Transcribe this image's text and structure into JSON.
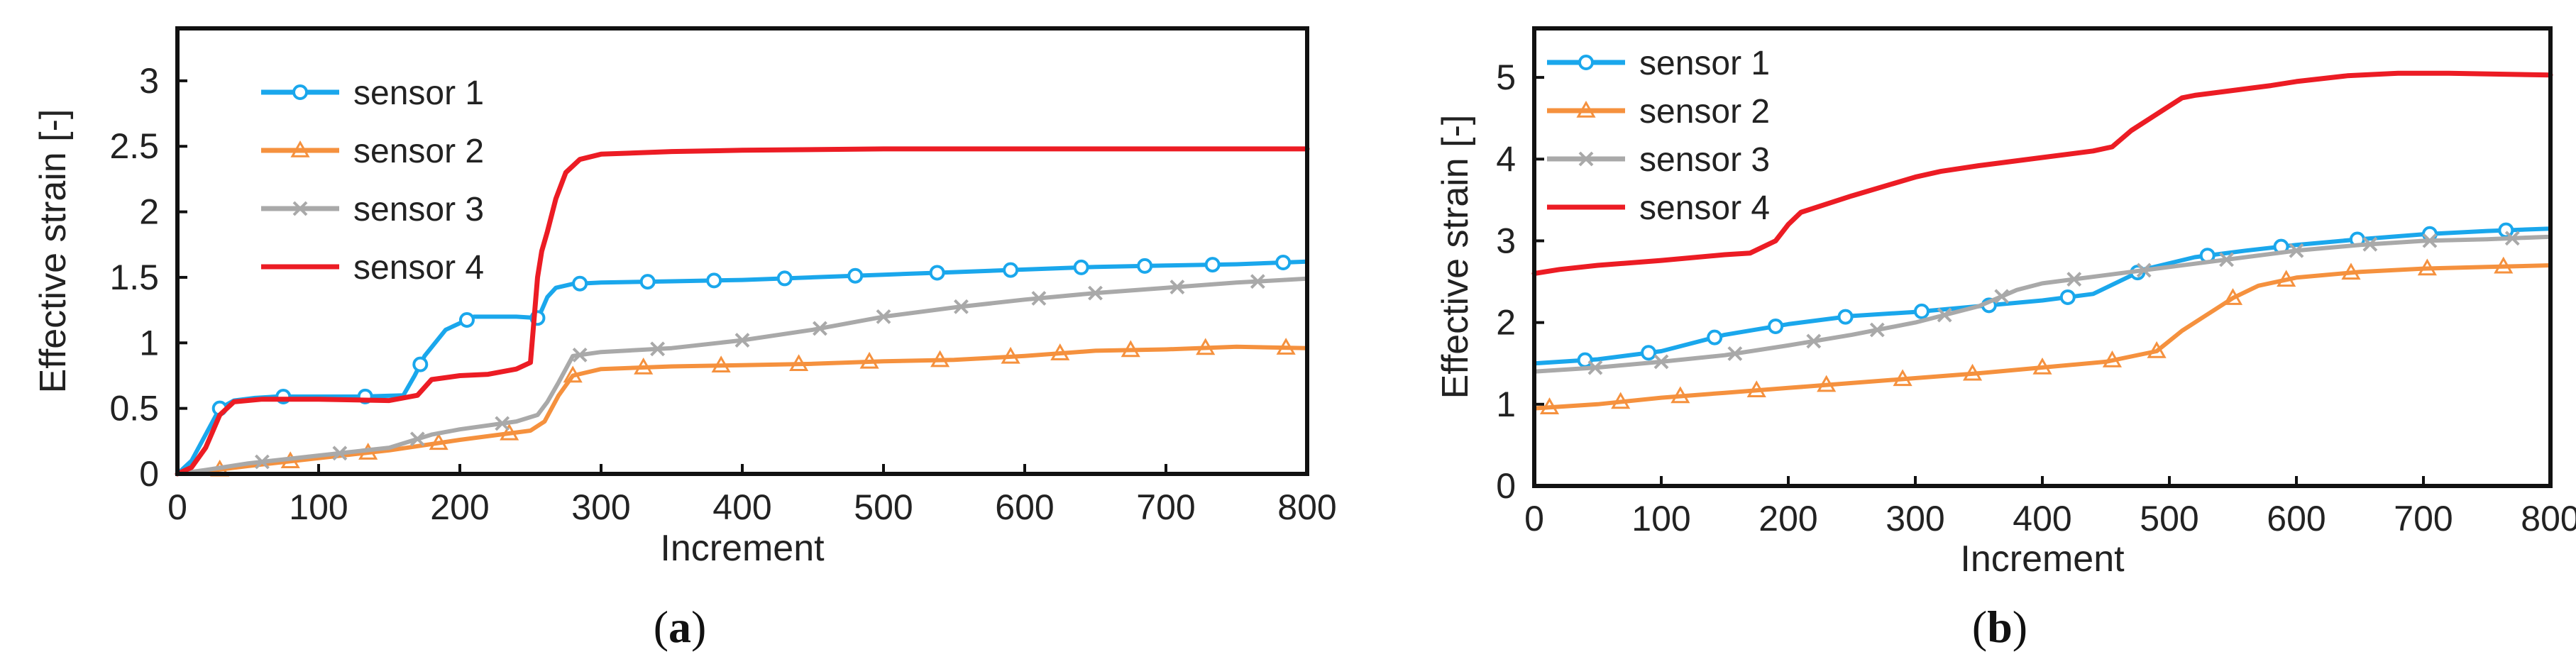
{
  "colors": {
    "sensor1": "#1aa7ec",
    "sensor2": "#f5913e",
    "sensor3": "#a9a9a9",
    "sensor4": "#ec1c24",
    "axis": "#111111"
  },
  "chart_data": [
    {
      "type": "line",
      "caption": "a",
      "xlabel": "Increment",
      "ylabel": "Effective strain [-]",
      "xlim": [
        0,
        800
      ],
      "ylim": [
        0,
        3.4
      ],
      "xticks": [
        0,
        100,
        200,
        300,
        400,
        500,
        600,
        700,
        800
      ],
      "yticks": [
        0,
        0.5,
        1,
        1.5,
        2,
        2.5,
        3
      ],
      "ytick_labels": [
        "0",
        "0.5",
        "1",
        "1.5",
        "2",
        "2.5",
        "3"
      ],
      "legend_position": "top-left",
      "series": [
        {
          "name": "sensor 1",
          "color_key": "sensor1",
          "marker": "circle",
          "x": [
            0,
            10,
            20,
            30,
            40,
            55,
            70,
            100,
            130,
            160,
            168,
            175,
            190,
            210,
            240,
            255,
            258,
            262,
            268,
            280,
            300,
            350,
            400,
            450,
            500,
            550,
            600,
            650,
            700,
            750,
            800
          ],
          "y": [
            0,
            0.1,
            0.3,
            0.5,
            0.56,
            0.58,
            0.59,
            0.59,
            0.59,
            0.6,
            0.75,
            0.9,
            1.1,
            1.2,
            1.2,
            1.19,
            1.25,
            1.35,
            1.42,
            1.45,
            1.46,
            1.47,
            1.48,
            1.5,
            1.52,
            1.54,
            1.56,
            1.58,
            1.59,
            1.6,
            1.62
          ],
          "markers_x": [
            30,
            75,
            133,
            172,
            205,
            255,
            285,
            333,
            380,
            430,
            480,
            538,
            590,
            640,
            685,
            733,
            783
          ]
        },
        {
          "name": "sensor 2",
          "color_key": "sensor2",
          "marker": "triangle",
          "x": [
            0,
            20,
            50,
            100,
            150,
            200,
            250,
            260,
            270,
            280,
            300,
            350,
            400,
            450,
            500,
            550,
            600,
            650,
            700,
            750,
            800
          ],
          "y": [
            0,
            0.02,
            0.06,
            0.12,
            0.18,
            0.26,
            0.33,
            0.4,
            0.6,
            0.75,
            0.8,
            0.82,
            0.83,
            0.84,
            0.86,
            0.87,
            0.9,
            0.94,
            0.95,
            0.97,
            0.96
          ],
          "markers_x": [
            30,
            80,
            135,
            185,
            235,
            280,
            330,
            385,
            440,
            490,
            540,
            590,
            625,
            675,
            728,
            785
          ]
        },
        {
          "name": "sensor 3",
          "color_key": "sensor3",
          "marker": "x",
          "x": [
            0,
            20,
            50,
            100,
            150,
            180,
            200,
            240,
            255,
            262,
            270,
            280,
            300,
            350,
            400,
            450,
            500,
            550,
            600,
            650,
            700,
            750,
            800
          ],
          "y": [
            0,
            0.03,
            0.08,
            0.14,
            0.2,
            0.3,
            0.34,
            0.4,
            0.45,
            0.55,
            0.7,
            0.9,
            0.93,
            0.96,
            1.02,
            1.1,
            1.2,
            1.27,
            1.33,
            1.38,
            1.42,
            1.46,
            1.49
          ],
          "markers_x": [
            60,
            115,
            170,
            230,
            285,
            340,
            400,
            455,
            500,
            555,
            610,
            650,
            708,
            765
          ]
        },
        {
          "name": "sensor 4",
          "color_key": "sensor4",
          "marker": "none",
          "x": [
            0,
            10,
            20,
            30,
            40,
            60,
            100,
            150,
            170,
            180,
            200,
            220,
            240,
            250,
            255,
            258,
            262,
            268,
            275,
            285,
            300,
            350,
            400,
            500,
            600,
            700,
            800
          ],
          "y": [
            0,
            0.05,
            0.2,
            0.45,
            0.55,
            0.57,
            0.57,
            0.56,
            0.6,
            0.72,
            0.75,
            0.76,
            0.8,
            0.85,
            1.5,
            1.7,
            1.85,
            2.1,
            2.3,
            2.4,
            2.44,
            2.46,
            2.47,
            2.48,
            2.48,
            2.48,
            2.48
          ],
          "markers_x": []
        }
      ]
    },
    {
      "type": "line",
      "caption": "b",
      "xlabel": "Increment",
      "ylabel": "Effective strain [-]",
      "xlim": [
        0,
        800
      ],
      "ylim": [
        0,
        5.6
      ],
      "xticks": [
        0,
        100,
        200,
        300,
        400,
        500,
        600,
        700,
        800
      ],
      "yticks": [
        0,
        1,
        2,
        3,
        4,
        5
      ],
      "ytick_labels": [
        "0",
        "1",
        "2",
        "3",
        "4",
        "5"
      ],
      "legend_position": "top-left",
      "series": [
        {
          "name": "sensor 1",
          "color_key": "sensor1",
          "marker": "circle",
          "x": [
            0,
            50,
            100,
            150,
            200,
            250,
            300,
            350,
            400,
            440,
            460,
            480,
            520,
            560,
            600,
            650,
            700,
            750,
            800
          ],
          "y": [
            1.5,
            1.55,
            1.65,
            1.85,
            1.98,
            2.08,
            2.13,
            2.2,
            2.27,
            2.35,
            2.5,
            2.65,
            2.8,
            2.88,
            2.95,
            3.02,
            3.08,
            3.12,
            3.15
          ],
          "markers_x": [
            40,
            90,
            142,
            190,
            245,
            305,
            358,
            420,
            475,
            530,
            588,
            648,
            705,
            765
          ]
        },
        {
          "name": "sensor 2",
          "color_key": "sensor2",
          "marker": "triangle",
          "x": [
            0,
            50,
            100,
            150,
            200,
            250,
            300,
            350,
            400,
            450,
            490,
            510,
            530,
            550,
            570,
            600,
            650,
            700,
            750,
            800
          ],
          "y": [
            0.95,
            1.0,
            1.08,
            1.14,
            1.2,
            1.26,
            1.32,
            1.38,
            1.45,
            1.52,
            1.65,
            1.9,
            2.1,
            2.3,
            2.45,
            2.55,
            2.62,
            2.66,
            2.68,
            2.7
          ],
          "markers_x": [
            12,
            68,
            115,
            175,
            230,
            290,
            345,
            400,
            455,
            490,
            550,
            592,
            643,
            703,
            763
          ]
        },
        {
          "name": "sensor 3",
          "color_key": "sensor3",
          "marker": "x",
          "x": [
            0,
            50,
            100,
            150,
            200,
            250,
            300,
            350,
            380,
            400,
            450,
            500,
            550,
            600,
            650,
            700,
            750,
            800
          ],
          "y": [
            1.4,
            1.45,
            1.52,
            1.6,
            1.72,
            1.85,
            2.0,
            2.2,
            2.4,
            2.48,
            2.58,
            2.68,
            2.78,
            2.88,
            2.95,
            3.0,
            3.02,
            3.05
          ],
          "markers_x": [
            48,
            100,
            158,
            220,
            270,
            323,
            368,
            425,
            480,
            545,
            600,
            658,
            705,
            770
          ]
        },
        {
          "name": "sensor 4",
          "color_key": "sensor4",
          "marker": "none",
          "x": [
            0,
            20,
            50,
            100,
            150,
            170,
            190,
            200,
            210,
            250,
            300,
            320,
            350,
            400,
            440,
            455,
            470,
            490,
            510,
            520,
            550,
            580,
            600,
            640,
            680,
            720,
            800
          ],
          "y": [
            2.6,
            2.65,
            2.7,
            2.76,
            2.83,
            2.85,
            3.0,
            3.2,
            3.35,
            3.55,
            3.78,
            3.85,
            3.92,
            4.02,
            4.1,
            4.15,
            4.35,
            4.55,
            4.75,
            4.78,
            4.84,
            4.9,
            4.95,
            5.02,
            5.05,
            5.05,
            5.03
          ],
          "markers_x": []
        }
      ]
    }
  ]
}
